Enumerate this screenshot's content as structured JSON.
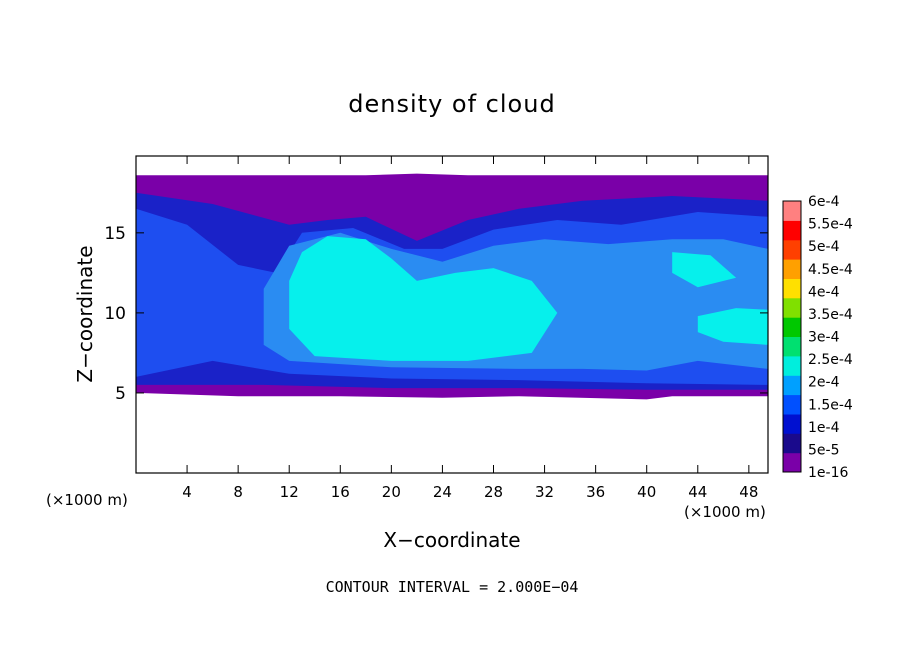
{
  "chart_data": {
    "type": "heatmap",
    "title": "density of cloud",
    "xlabel": "X−coordinate",
    "ylabel": "Z−coordinate",
    "x_unit_left": "(×1000 m)",
    "x_unit_right": "(×1000 m)",
    "xlim": [
      0,
      49.5
    ],
    "ylim": [
      0,
      19.8
    ],
    "x_ticks": [
      4,
      8,
      12,
      16,
      20,
      24,
      28,
      32,
      36,
      40,
      44,
      48
    ],
    "y_ticks": [
      5,
      10,
      15
    ],
    "colorbar": {
      "labels": [
        "1e-16",
        "5e-5",
        "1e-4",
        "1.5e-4",
        "2e-4",
        "2.5e-4",
        "3e-4",
        "3.5e-4",
        "4e-4",
        "4.5e-4",
        "5e-4",
        "5.5e-4",
        "6e-4"
      ],
      "colors": [
        "#7a00a8",
        "#1a0a8c",
        "#0010d0",
        "#0050ff",
        "#00a0ff",
        "#00eedd",
        "#00e070",
        "#00c800",
        "#80e000",
        "#ffe000",
        "#ffa000",
        "#ff4000",
        "#ff0000",
        "#ff8080"
      ]
    },
    "footer": "CONTOUR INTERVAL = 2.000E−04",
    "regions": [
      {
        "level": 0,
        "poly": [
          [
            0,
            18.6
          ],
          [
            12,
            18.6
          ],
          [
            18,
            18.6
          ],
          [
            22,
            18.7
          ],
          [
            26,
            18.6
          ],
          [
            33,
            18.6
          ],
          [
            49.5,
            18.6
          ],
          [
            49.5,
            4.8
          ],
          [
            42,
            4.8
          ],
          [
            40,
            4.6
          ],
          [
            30,
            4.8
          ],
          [
            24,
            4.7
          ],
          [
            16,
            4.8
          ],
          [
            8,
            4.8
          ],
          [
            0,
            5.0
          ]
        ]
      },
      {
        "level": 1,
        "poly": [
          [
            0,
            17.5
          ],
          [
            6,
            16.8
          ],
          [
            12,
            15.5
          ],
          [
            15,
            15.8
          ],
          [
            18,
            16.0
          ],
          [
            22,
            14.5
          ],
          [
            26,
            15.8
          ],
          [
            30,
            16.5
          ],
          [
            35,
            17.0
          ],
          [
            42,
            17.3
          ],
          [
            49.5,
            17.0
          ],
          [
            49.5,
            5.2
          ],
          [
            40,
            5.2
          ],
          [
            30,
            5.3
          ],
          [
            20,
            5.3
          ],
          [
            10,
            5.5
          ],
          [
            0,
            5.5
          ]
        ]
      },
      {
        "level": 2,
        "poly": [
          [
            0,
            16.5
          ],
          [
            4,
            15.5
          ],
          [
            8,
            13.0
          ],
          [
            11,
            12.5
          ],
          [
            13,
            15.0
          ],
          [
            17,
            15.3
          ],
          [
            21,
            14.0
          ],
          [
            24,
            14.0
          ],
          [
            28,
            15.2
          ],
          [
            33,
            15.8
          ],
          [
            38,
            15.5
          ],
          [
            44,
            16.3
          ],
          [
            49.5,
            16.0
          ],
          [
            49.5,
            5.5
          ],
          [
            40,
            5.6
          ],
          [
            30,
            5.8
          ],
          [
            20,
            5.9
          ],
          [
            12,
            6.2
          ],
          [
            6,
            7.0
          ],
          [
            0,
            6.0
          ]
        ]
      },
      {
        "level": 3,
        "poly": [
          [
            12,
            14.2
          ],
          [
            16,
            15.0
          ],
          [
            20,
            14.0
          ],
          [
            24,
            13.2
          ],
          [
            28,
            14.2
          ],
          [
            32,
            14.6
          ],
          [
            37,
            14.3
          ],
          [
            42,
            14.6
          ],
          [
            46,
            14.6
          ],
          [
            49.5,
            14.0
          ],
          [
            49.5,
            6.5
          ],
          [
            44,
            7.0
          ],
          [
            40,
            6.4
          ],
          [
            35,
            6.5
          ],
          [
            30,
            6.5
          ],
          [
            20,
            6.6
          ],
          [
            12,
            7.0
          ],
          [
            10,
            8.0
          ],
          [
            10,
            11.5
          ]
        ]
      },
      {
        "level": 4,
        "poly": [
          [
            13,
            13.8
          ],
          [
            15,
            14.8
          ],
          [
            18,
            14.6
          ],
          [
            20,
            13.4
          ],
          [
            22,
            12.0
          ],
          [
            25,
            12.5
          ],
          [
            28,
            12.8
          ],
          [
            31,
            12.0
          ],
          [
            33,
            10.0
          ],
          [
            31,
            7.5
          ],
          [
            26,
            7.0
          ],
          [
            20,
            7.0
          ],
          [
            14,
            7.3
          ],
          [
            12,
            9.0
          ],
          [
            12,
            12.0
          ]
        ]
      },
      {
        "level": 4,
        "poly": [
          [
            42,
            13.8
          ],
          [
            45,
            13.6
          ],
          [
            47,
            12.2
          ],
          [
            44,
            11.6
          ],
          [
            42,
            12.5
          ]
        ]
      },
      {
        "level": 4,
        "poly": [
          [
            44,
            9.8
          ],
          [
            47,
            10.3
          ],
          [
            49.5,
            10.2
          ],
          [
            49.5,
            8.0
          ],
          [
            46,
            8.2
          ],
          [
            44,
            8.8
          ]
        ]
      }
    ]
  }
}
